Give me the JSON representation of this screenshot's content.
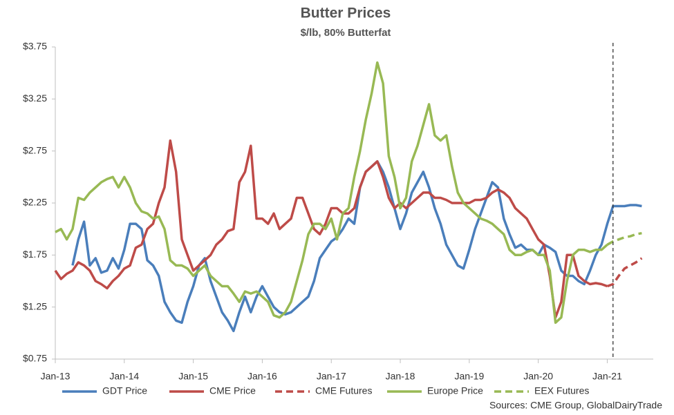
{
  "chart_data": {
    "type": "line",
    "title": "Butter Prices",
    "subtitle": "$/lb, 80% Butterfat",
    "source": "Sources:  CME Group, GlobalDairyTrade",
    "x": [
      "2013-01",
      "2013-02",
      "2013-03",
      "2013-04",
      "2013-05",
      "2013-06",
      "2013-07",
      "2013-08",
      "2013-09",
      "2013-10",
      "2013-11",
      "2013-12",
      "2014-01",
      "2014-02",
      "2014-03",
      "2014-04",
      "2014-05",
      "2014-06",
      "2014-07",
      "2014-08",
      "2014-09",
      "2014-10",
      "2014-11",
      "2014-12",
      "2015-01",
      "2015-02",
      "2015-03",
      "2015-04",
      "2015-05",
      "2015-06",
      "2015-07",
      "2015-08",
      "2015-09",
      "2015-10",
      "2015-11",
      "2015-12",
      "2016-01",
      "2016-02",
      "2016-03",
      "2016-04",
      "2016-05",
      "2016-06",
      "2016-07",
      "2016-08",
      "2016-09",
      "2016-10",
      "2016-11",
      "2016-12",
      "2017-01",
      "2017-02",
      "2017-03",
      "2017-04",
      "2017-05",
      "2017-06",
      "2017-07",
      "2017-08",
      "2017-09",
      "2017-10",
      "2017-11",
      "2017-12",
      "2018-01",
      "2018-02",
      "2018-03",
      "2018-04",
      "2018-05",
      "2018-06",
      "2018-07",
      "2018-08",
      "2018-09",
      "2018-10",
      "2018-11",
      "2018-12",
      "2019-01",
      "2019-02",
      "2019-03",
      "2019-04",
      "2019-05",
      "2019-06",
      "2019-07",
      "2019-08",
      "2019-09",
      "2019-10",
      "2019-11",
      "2019-12",
      "2020-01",
      "2020-02",
      "2020-03",
      "2020-04",
      "2020-05",
      "2020-06",
      "2020-07",
      "2020-08",
      "2020-09",
      "2020-10",
      "2020-11",
      "2020-12",
      "2021-01",
      "2021-02",
      "2021-03",
      "2021-04",
      "2021-05",
      "2021-06",
      "2021-07"
    ],
    "series": [
      {
        "name": "GDT Price",
        "color": "#4a7ebb",
        "dashed": false,
        "values": [
          null,
          null,
          null,
          1.65,
          1.9,
          2.07,
          1.65,
          1.72,
          1.58,
          1.6,
          1.72,
          1.62,
          1.8,
          2.05,
          2.05,
          2.0,
          1.7,
          1.65,
          1.55,
          1.3,
          1.2,
          1.12,
          1.1,
          1.3,
          1.45,
          1.65,
          1.72,
          1.5,
          1.35,
          1.2,
          1.12,
          1.02,
          1.2,
          1.35,
          1.2,
          1.35,
          1.45,
          1.35,
          1.25,
          1.2,
          1.18,
          1.2,
          1.25,
          1.3,
          1.35,
          1.5,
          1.72,
          1.8,
          1.88,
          1.92,
          2.0,
          2.1,
          2.05,
          2.4,
          2.55,
          2.6,
          2.65,
          2.55,
          2.4,
          2.2,
          2.0,
          2.15,
          2.35,
          2.45,
          2.55,
          2.4,
          2.2,
          2.05,
          1.85,
          1.75,
          1.65,
          1.62,
          1.8,
          2.0,
          2.15,
          2.3,
          2.45,
          2.4,
          2.1,
          1.95,
          1.82,
          1.85,
          1.8,
          1.8,
          1.75,
          1.85,
          1.82,
          1.78,
          1.6,
          1.55,
          1.55,
          1.5,
          1.47,
          1.6,
          1.75,
          1.85,
          2.05,
          2.22,
          2.22,
          2.22,
          2.23,
          2.23,
          2.22
        ]
      },
      {
        "name": "CME Price",
        "color": "#be4b48",
        "dashed": false,
        "values": [
          1.6,
          1.52,
          1.57,
          1.6,
          1.68,
          1.65,
          1.6,
          1.5,
          1.47,
          1.43,
          1.5,
          1.55,
          1.62,
          1.65,
          1.82,
          1.85,
          2.0,
          2.05,
          2.25,
          2.4,
          2.85,
          2.55,
          1.9,
          1.75,
          1.6,
          1.65,
          1.7,
          1.75,
          1.85,
          1.9,
          1.98,
          2.0,
          2.45,
          2.55,
          2.8,
          2.1,
          2.1,
          2.05,
          2.15,
          2.0,
          2.05,
          2.1,
          2.3,
          2.3,
          2.15,
          2.0,
          1.95,
          2.05,
          2.2,
          2.2,
          2.15,
          2.15,
          2.2,
          2.4,
          2.55,
          2.6,
          2.65,
          2.5,
          2.3,
          2.2,
          2.25,
          2.2,
          2.25,
          2.3,
          2.35,
          2.35,
          2.3,
          2.3,
          2.28,
          2.25,
          2.25,
          2.25,
          2.25,
          2.28,
          2.28,
          2.3,
          2.35,
          2.38,
          2.35,
          2.3,
          2.2,
          2.15,
          2.1,
          2.0,
          1.9,
          1.85,
          1.55,
          1.15,
          1.3,
          1.75,
          1.75,
          1.55,
          1.5,
          1.47,
          1.48,
          1.47,
          1.45,
          null,
          null,
          null,
          null,
          null,
          null
        ]
      },
      {
        "name": "CME Futures",
        "color": "#be4b48",
        "dashed": true,
        "x": [
          "2021-01",
          "2021-02",
          "2021-03",
          "2021-04",
          "2021-05",
          "2021-06",
          "2021-07"
        ],
        "values": [
          1.45,
          1.47,
          1.55,
          1.62,
          1.65,
          1.68,
          1.72
        ]
      },
      {
        "name": "Europe Price",
        "color": "#98b954",
        "dashed": false,
        "values": [
          1.97,
          2.0,
          1.9,
          2.0,
          2.3,
          2.28,
          2.35,
          2.4,
          2.45,
          2.48,
          2.5,
          2.4,
          2.5,
          2.4,
          2.25,
          2.17,
          2.15,
          2.1,
          2.12,
          2.0,
          1.7,
          1.65,
          1.65,
          1.62,
          1.55,
          1.6,
          1.65,
          1.55,
          1.5,
          1.45,
          1.45,
          1.38,
          1.3,
          1.4,
          1.38,
          1.4,
          1.35,
          1.3,
          1.17,
          1.15,
          1.2,
          1.3,
          1.5,
          1.7,
          1.95,
          2.05,
          2.05,
          2.0,
          2.1,
          1.9,
          2.15,
          2.2,
          2.5,
          2.75,
          3.05,
          3.3,
          3.6,
          3.4,
          2.7,
          2.5,
          2.2,
          2.3,
          2.65,
          2.8,
          3.0,
          3.2,
          2.9,
          2.85,
          2.9,
          2.6,
          2.35,
          2.25,
          2.2,
          2.15,
          2.1,
          2.08,
          2.05,
          2.0,
          1.95,
          1.8,
          1.75,
          1.75,
          1.78,
          1.8,
          1.75,
          1.75,
          1.6,
          1.1,
          1.15,
          1.5,
          1.75,
          1.8,
          1.8,
          1.78,
          1.8,
          1.8,
          1.85,
          null,
          null,
          null,
          null,
          null,
          null
        ]
      },
      {
        "name": "EEX Futures",
        "color": "#98b954",
        "dashed": true,
        "x": [
          "2021-01",
          "2021-02",
          "2021-03",
          "2021-04",
          "2021-05",
          "2021-06",
          "2021-07"
        ],
        "values": [
          1.85,
          1.88,
          1.9,
          1.92,
          1.93,
          1.95,
          1.96
        ]
      }
    ],
    "vline": "2021-02",
    "xlim": [
      "2013-01",
      "2021-09"
    ],
    "xticks": [
      {
        "value": "2013-01",
        "label": "Jan-13"
      },
      {
        "value": "2014-01",
        "label": "Jan-14"
      },
      {
        "value": "2015-01",
        "label": "Jan-15"
      },
      {
        "value": "2016-01",
        "label": "Jan-16"
      },
      {
        "value": "2017-01",
        "label": "Jan-17"
      },
      {
        "value": "2018-01",
        "label": "Jan-18"
      },
      {
        "value": "2019-01",
        "label": "Jan-19"
      },
      {
        "value": "2020-01",
        "label": "Jan-20"
      },
      {
        "value": "2021-01",
        "label": "Jan-21"
      }
    ],
    "ylim": [
      0.75,
      3.75
    ],
    "yticks": [
      {
        "value": 0.75,
        "label": "$0.75"
      },
      {
        "value": 1.25,
        "label": "$1.25"
      },
      {
        "value": 1.75,
        "label": "$1.75"
      },
      {
        "value": 2.25,
        "label": "$2.25"
      },
      {
        "value": 2.75,
        "label": "$2.75"
      },
      {
        "value": 3.25,
        "label": "$3.25"
      },
      {
        "value": 3.75,
        "label": "$3.75"
      }
    ],
    "grid": false,
    "legend": "bottom"
  }
}
